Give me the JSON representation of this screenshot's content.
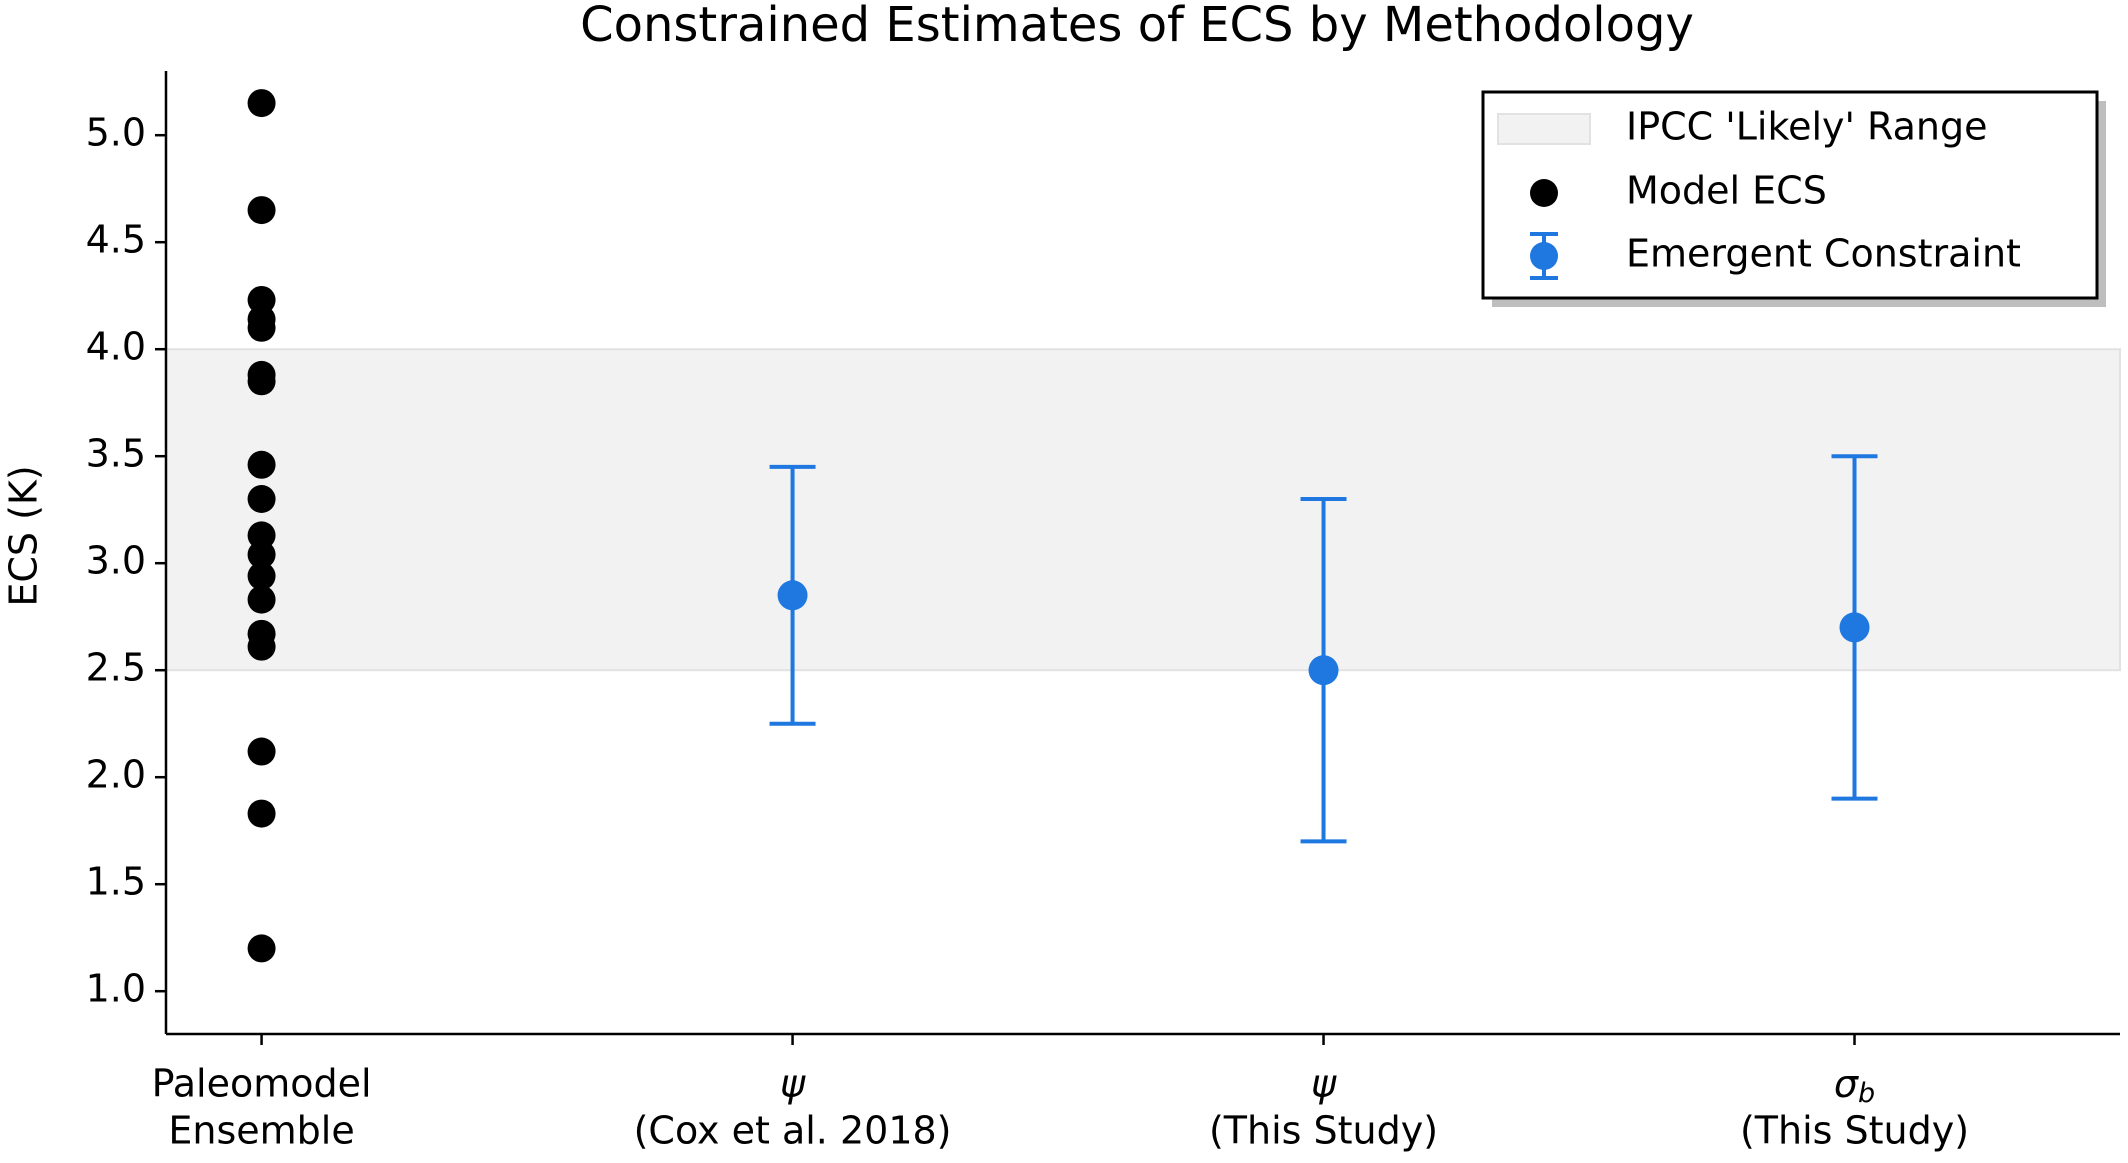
{
  "chart_data": {
    "type": "errorbar",
    "title": "Constrained Estimates of ECS by Methodology",
    "y_label": "ECS (K)",
    "categories": [
      [
        "Paleomodel",
        "Ensemble"
      ],
      [
        "ψ",
        "(Cox et al. 2018)"
      ],
      [
        "ψ",
        "(This Study)"
      ],
      [
        [
          "σ",
          "b"
        ],
        "(This Study)"
      ]
    ],
    "xlim": [
      -0.18,
      3.5
    ],
    "ylim": [
      0.8,
      5.3
    ],
    "yticks": [
      {
        "value": 1,
        "label": "1.0"
      },
      {
        "value": 1.5,
        "label": "1.5"
      },
      {
        "value": 2,
        "label": "2.0"
      },
      {
        "value": 2.5,
        "label": "2.5"
      },
      {
        "value": 3,
        "label": "3.0"
      },
      {
        "value": 3.5,
        "label": "3.5"
      },
      {
        "value": 4,
        "label": "4.0"
      },
      {
        "value": 4.5,
        "label": "4.5"
      },
      {
        "value": 5,
        "label": "5.0"
      }
    ],
    "band": {
      "name": "IPCC 'Likely' Range",
      "range": [
        2.5,
        4.0
      ],
      "color": "#f2f2f2"
    },
    "series": [
      {
        "name": "Model ECS",
        "color": "#000000",
        "type": "scatter",
        "x": [
          0,
          0,
          0,
          0,
          0,
          0,
          0,
          0,
          0,
          0,
          0,
          0,
          0,
          0,
          0,
          0,
          0,
          0
        ],
        "values": [
          5.15,
          4.65,
          4.23,
          4.14,
          4.1,
          3.88,
          3.85,
          3.46,
          3.3,
          3.13,
          3.04,
          2.94,
          2.83,
          2.67,
          2.61,
          2.12,
          1.83,
          1.2
        ]
      },
      {
        "name": "Emergent Constraint",
        "color": "#1f77e0",
        "type": "errorbar",
        "x": [
          1,
          2,
          3
        ],
        "values": [
          2.85,
          2.5,
          2.7
        ],
        "errors": [
          0.6,
          0.8,
          0.8
        ]
      }
    ],
    "legend": "upper right",
    "grid": false
  }
}
